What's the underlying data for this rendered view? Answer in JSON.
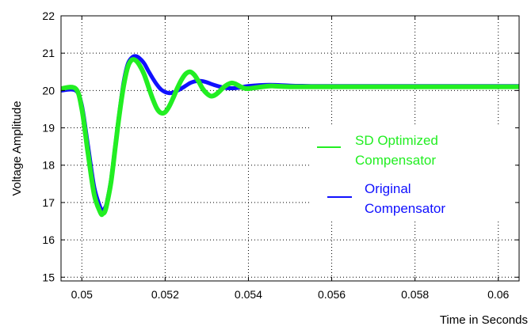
{
  "chart_data": {
    "type": "line",
    "title": "",
    "xlabel": "Time in Seconds",
    "ylabel": "Voltage Amplitude",
    "xlim": [
      0.0495,
      0.0605
    ],
    "ylim": [
      14.9,
      22
    ],
    "x_ticks": [
      0.05,
      0.052,
      0.054,
      0.056,
      0.058,
      0.06
    ],
    "x_tick_labels": [
      "0.05",
      "0.052",
      "0.054",
      "0.056",
      "0.058",
      "0.06"
    ],
    "y_ticks": [
      15,
      16,
      17,
      18,
      19,
      20,
      21,
      22
    ],
    "y_tick_labels": [
      "15",
      "16",
      "17",
      "18",
      "19",
      "20",
      "21",
      "22"
    ],
    "grid": true,
    "legend_position": "right",
    "series": [
      {
        "name": "Original Compensator",
        "color": "#1010ff",
        "x": [
          0.0495,
          0.04985,
          0.05,
          0.05015,
          0.0503,
          0.05045,
          0.0505,
          0.05055,
          0.0506,
          0.0507,
          0.0508,
          0.0509,
          0.051,
          0.0511,
          0.0512,
          0.0513,
          0.0514,
          0.0515,
          0.0516,
          0.0517,
          0.0518,
          0.0519,
          0.052,
          0.0521,
          0.0522,
          0.0523,
          0.0524,
          0.0525,
          0.0526,
          0.0527,
          0.0528,
          0.0529,
          0.053,
          0.0532,
          0.0534,
          0.0536,
          0.0538,
          0.054,
          0.0545,
          0.055,
          0.0555,
          0.056,
          0.057,
          0.058,
          0.059,
          0.0605
        ],
        "y": [
          20.0,
          20.0,
          19.6,
          18.5,
          17.4,
          16.85,
          16.8,
          16.85,
          17.0,
          17.6,
          18.5,
          19.4,
          20.2,
          20.7,
          20.88,
          20.92,
          20.85,
          20.72,
          20.52,
          20.33,
          20.16,
          20.03,
          19.96,
          19.93,
          19.95,
          20.0,
          20.06,
          20.13,
          20.2,
          20.24,
          20.26,
          20.25,
          20.22,
          20.14,
          20.08,
          20.06,
          20.08,
          20.12,
          20.15,
          20.13,
          20.12,
          20.12,
          20.12,
          20.12,
          20.12,
          20.12
        ]
      },
      {
        "name": "SD Optimized Compensator",
        "color": "#22ee22",
        "x": [
          0.0495,
          0.04985,
          0.05,
          0.05015,
          0.0503,
          0.05045,
          0.0505,
          0.05055,
          0.0506,
          0.0507,
          0.0508,
          0.0509,
          0.051,
          0.0511,
          0.0512,
          0.0513,
          0.0514,
          0.0515,
          0.0516,
          0.0517,
          0.0518,
          0.0519,
          0.052,
          0.0521,
          0.0522,
          0.0523,
          0.0524,
          0.0525,
          0.0526,
          0.0527,
          0.0528,
          0.0529,
          0.053,
          0.0531,
          0.0532,
          0.0533,
          0.0534,
          0.0535,
          0.0536,
          0.0537,
          0.0538,
          0.0539,
          0.054,
          0.0542,
          0.0544,
          0.0546,
          0.055,
          0.056,
          0.057,
          0.058,
          0.059,
          0.0605
        ],
        "y": [
          20.05,
          20.05,
          19.5,
          18.3,
          17.2,
          16.72,
          16.7,
          16.75,
          16.95,
          17.55,
          18.45,
          19.35,
          20.1,
          20.62,
          20.82,
          20.8,
          20.65,
          20.42,
          20.1,
          19.78,
          19.52,
          19.4,
          19.42,
          19.58,
          19.82,
          20.08,
          20.3,
          20.45,
          20.5,
          20.42,
          20.25,
          20.05,
          19.92,
          19.85,
          19.88,
          19.97,
          20.08,
          20.16,
          20.2,
          20.17,
          20.11,
          20.06,
          20.05,
          20.08,
          20.11,
          20.12,
          20.1,
          20.1,
          20.1,
          20.1,
          20.1,
          20.1
        ]
      }
    ],
    "legend": [
      {
        "lines": [
          "SD Optimized",
          "Compensator"
        ],
        "color": "#22ee22"
      },
      {
        "lines": [
          "Original",
          "Compensator"
        ],
        "color": "#1010ff"
      }
    ]
  }
}
